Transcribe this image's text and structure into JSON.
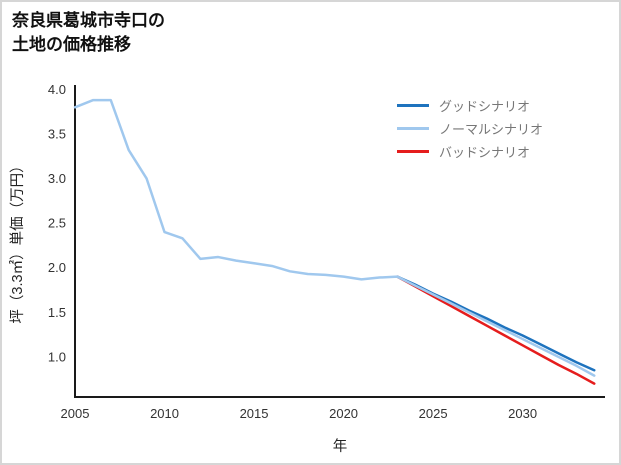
{
  "title": {
    "line1": "奈良県葛城市寺口の",
    "line2": "土地の価格推移"
  },
  "chart_data": {
    "type": "line",
    "title": "奈良県葛城市寺口の土地の価格推移",
    "xlabel": "年",
    "ylabel": "坪（3.3㎡）単価（万円）",
    "xlim": [
      2005,
      2034.6
    ],
    "ylim": [
      0.55,
      4.05
    ],
    "xtick_values": [
      2005,
      2010,
      2015,
      2020,
      2025,
      2030
    ],
    "xtick_labels": [
      "2005",
      "2010",
      "2015",
      "2020",
      "2025",
      "2030"
    ],
    "ytick_values": [
      1.0,
      1.5,
      2.0,
      2.5,
      3.0,
      3.5,
      4.0
    ],
    "ytick_labels": [
      "1.0",
      "1.5",
      "2.0",
      "2.5",
      "3.0",
      "3.5",
      "4.0"
    ],
    "grid": false,
    "legend_position": "top-right",
    "axis_color": "#1a1a1a",
    "tick_color": "#333333",
    "series": [
      {
        "id": "good-scenario",
        "name": "グッドシナリオ",
        "color": "#1e73be",
        "z": 2,
        "x": [
          2023,
          2024,
          2025,
          2026,
          2027,
          2028,
          2029,
          2030,
          2031,
          2032,
          2033,
          2034
        ],
        "values": [
          1.9,
          1.81,
          1.71,
          1.62,
          1.52,
          1.43,
          1.33,
          1.24,
          1.14,
          1.04,
          0.94,
          0.85
        ]
      },
      {
        "id": "normal-scenario",
        "name": "ノーマルシナリオ",
        "color": "#a0c8ee",
        "z": 3,
        "x": [
          2005,
          2006,
          2007,
          2008,
          2009,
          2010,
          2011,
          2012,
          2013,
          2014,
          2015,
          2016,
          2017,
          2018,
          2019,
          2020,
          2021,
          2022,
          2023,
          2024,
          2025,
          2026,
          2027,
          2028,
          2029,
          2030,
          2031,
          2032,
          2033,
          2034
        ],
        "values": [
          3.8,
          3.88,
          3.88,
          3.32,
          3.0,
          2.4,
          2.33,
          2.1,
          2.12,
          2.08,
          2.05,
          2.02,
          1.96,
          1.93,
          1.92,
          1.9,
          1.87,
          1.89,
          1.9,
          1.8,
          1.7,
          1.6,
          1.5,
          1.4,
          1.3,
          1.2,
          1.1,
          1.0,
          0.9,
          0.79
        ]
      },
      {
        "id": "bad-scenario",
        "name": "バッドシナリオ",
        "color": "#e51d1d",
        "z": 1,
        "x": [
          2023,
          2024,
          2025,
          2026,
          2027,
          2028,
          2029,
          2030,
          2031,
          2032,
          2033,
          2034
        ],
        "values": [
          1.9,
          1.79,
          1.68,
          1.57,
          1.46,
          1.35,
          1.24,
          1.13,
          1.02,
          0.91,
          0.81,
          0.7
        ]
      }
    ]
  }
}
